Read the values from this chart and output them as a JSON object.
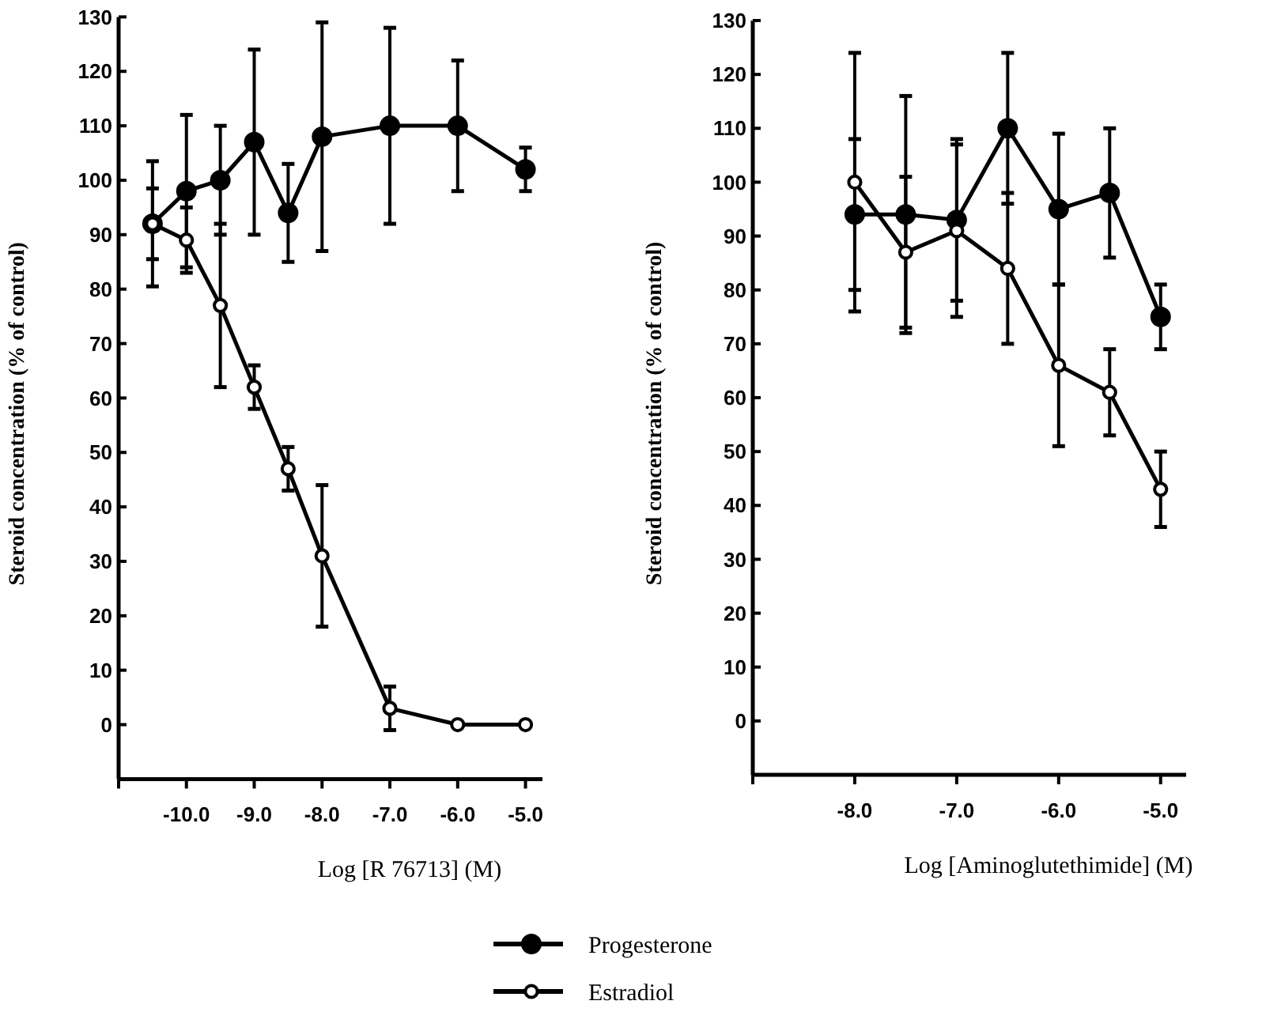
{
  "chart_data": [
    {
      "type": "line",
      "xlabel": "Log [R 76713] (M)",
      "ylabel": "Steroid concentration  (% of control)",
      "x": [
        -10.5,
        -10,
        -9.5,
        -9,
        -8.5,
        -8,
        -7,
        -6,
        -5
      ],
      "xlim": [
        -11,
        -4.75
      ],
      "xticks": [
        {
          "value": -11,
          "label": null
        },
        {
          "value": -10,
          "label": "-10.0"
        },
        {
          "value": -9,
          "label": "-9.0"
        },
        {
          "value": -8,
          "label": "-8.0"
        },
        {
          "value": -7,
          "label": "-7.0"
        },
        {
          "value": -6,
          "label": "-6.0"
        },
        {
          "value": -5,
          "label": "-5.0"
        }
      ],
      "ylim": [
        -10,
        130
      ],
      "yticks": [
        0,
        10,
        20,
        30,
        40,
        50,
        60,
        70,
        80,
        90,
        100,
        110,
        120,
        130
      ],
      "grid": false,
      "legend": "bottom",
      "series": [
        {
          "name": "Progesterone",
          "color": "#000000",
          "marker": "circle",
          "values": [
            92,
            98,
            100,
            107,
            94,
            108,
            110,
            110,
            102
          ],
          "errors": [
            11.5,
            14,
            10,
            17,
            9,
            21,
            18,
            12,
            4
          ]
        },
        {
          "name": "Estradiol",
          "color": "#000000",
          "marker": "circle",
          "values": [
            92,
            89,
            77,
            62,
            47,
            31,
            3,
            0,
            0
          ],
          "errors": [
            6.5,
            6,
            15,
            4,
            4,
            13,
            4,
            null,
            null
          ]
        }
      ]
    },
    {
      "type": "line",
      "xlabel": "Log [Aminoglutethimide] (M)",
      "ylabel": "Steroid concentration  (% of control)",
      "x": [
        -8,
        -7.5,
        -7,
        -6.5,
        -6,
        -5.5,
        -5
      ],
      "xlim": [
        -9,
        -4.75
      ],
      "xticks": [
        {
          "value": -9,
          "label": null
        },
        {
          "value": -8,
          "label": "-8.0"
        },
        {
          "value": -7,
          "label": "-7.0"
        },
        {
          "value": -6,
          "label": "-6.0"
        },
        {
          "value": -5,
          "label": "-5.0"
        }
      ],
      "ylim": [
        -10,
        130
      ],
      "yticks": [
        0,
        10,
        20,
        30,
        40,
        50,
        60,
        70,
        80,
        90,
        100,
        110,
        120,
        130
      ],
      "grid": false,
      "legend": "bottom",
      "series": [
        {
          "name": "Progesterone",
          "color": "#000000",
          "marker": "circle",
          "values": [
            94,
            94,
            93,
            110,
            95,
            98,
            75
          ],
          "errors": [
            14,
            22,
            15,
            14,
            14,
            12,
            6
          ]
        },
        {
          "name": "Estradiol",
          "color": "#000000",
          "marker": "circle",
          "values": [
            100,
            87,
            91,
            84,
            66,
            61,
            43
          ],
          "errors": [
            24,
            14,
            16,
            14,
            15,
            8,
            7
          ]
        }
      ]
    }
  ]
}
